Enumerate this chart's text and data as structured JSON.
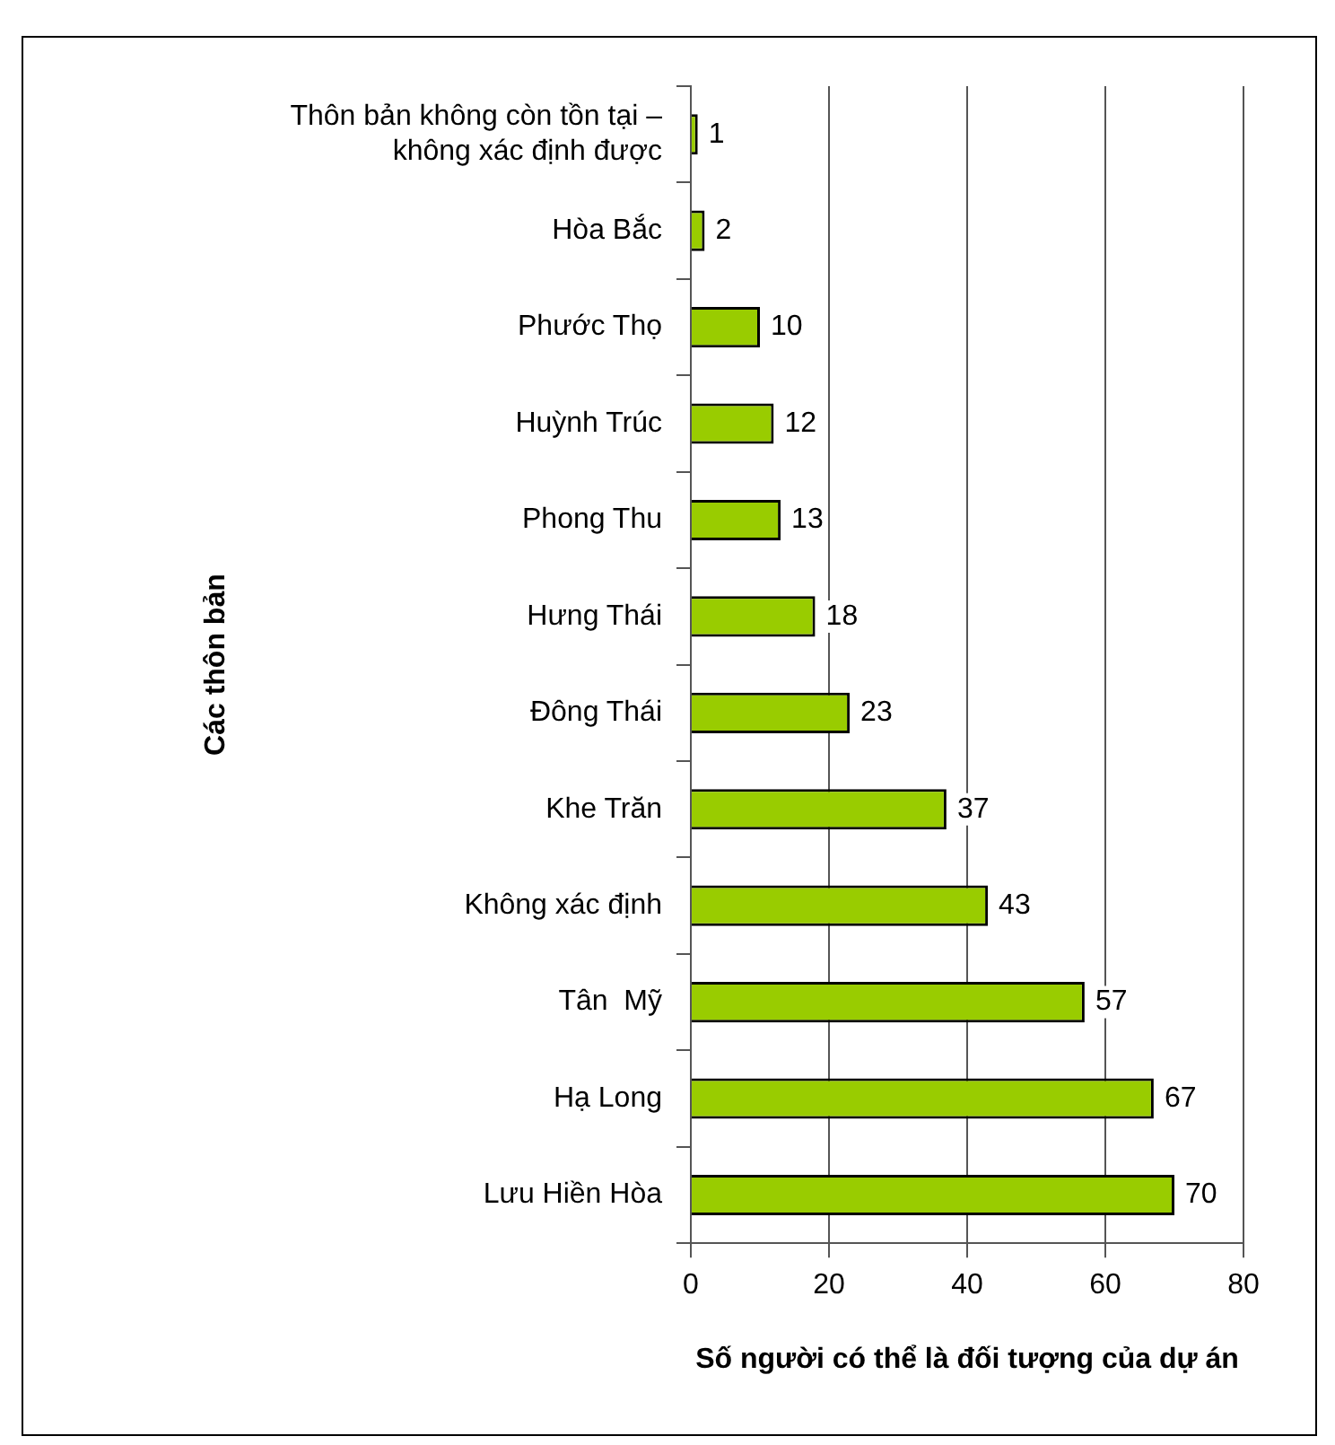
{
  "chart_data": {
    "type": "bar",
    "orientation": "horizontal",
    "xlabel": "Số người có thể là đối tượng của dự án",
    "ylabel": "Các thôn bản",
    "categories": [
      "Thôn bản không còn tồn tại – không xác định được",
      "Hòa Bắc",
      "Phước Thọ",
      "Huỳnh Trúc",
      "Phong Thu",
      "Hưng Thái",
      "Đông Thái",
      "Khe Trăn",
      "Không xác định",
      "Tân  Mỹ",
      "Hạ Long",
      "Lưu Hiền Hòa"
    ],
    "values": [
      1,
      2,
      10,
      12,
      13,
      18,
      23,
      37,
      43,
      57,
      67,
      70
    ],
    "color": "#99cc00",
    "xlim": [
      0,
      80
    ],
    "xticks": [
      0,
      20,
      40,
      60,
      80
    ],
    "grid": "x",
    "data_labels": true,
    "legend": false
  }
}
